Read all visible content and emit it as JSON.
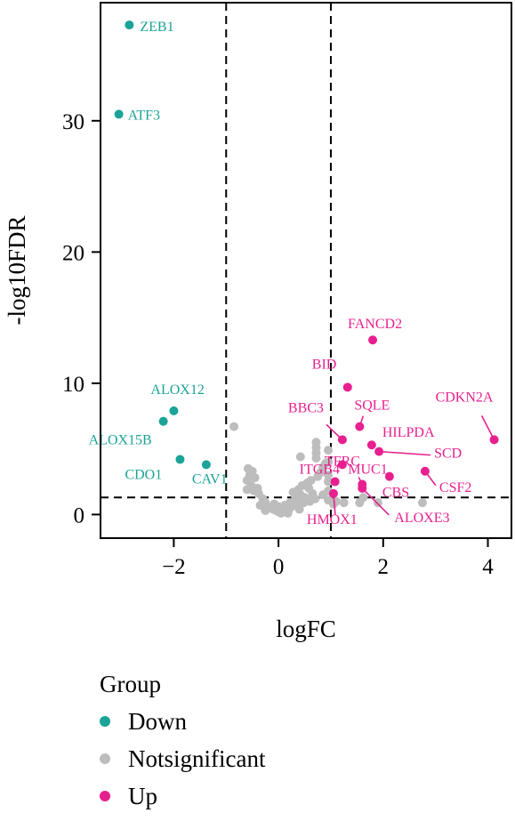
{
  "chart_data": {
    "type": "scatter",
    "xlabel": "logFC",
    "ylabel": "-log10FDR",
    "xlim": [
      -3.4,
      4.45
    ],
    "ylim": [
      -1.8,
      39
    ],
    "xticks": [
      -2,
      0,
      2,
      4
    ],
    "yticks": [
      0,
      10,
      20,
      30
    ],
    "x_tick_labels": [
      "−2",
      "0",
      "2",
      "4"
    ],
    "y_tick_labels": [
      "0",
      "10",
      "20",
      "30"
    ],
    "threshold_lines": {
      "x": [
        -1,
        1
      ],
      "y": [
        1.3
      ]
    },
    "colors": {
      "Down": "#1aa396",
      "Notsignificant": "#bdbdbd",
      "Up": "#e8208f"
    },
    "legend": {
      "title": "Group",
      "placement": "bottom-left",
      "items": [
        {
          "group": "Down",
          "label": "Down"
        },
        {
          "group": "Notsignificant",
          "label": "Notsignificant"
        },
        {
          "group": "Up",
          "label": "Up"
        }
      ]
    },
    "series": [
      {
        "name": "Down",
        "points": [
          {
            "x": -2.85,
            "y": 37.3,
            "label": "ZEB1"
          },
          {
            "x": -3.05,
            "y": 30.5,
            "label": "ATF3"
          },
          {
            "x": -2.0,
            "y": 7.9,
            "label": "ALOX12"
          },
          {
            "x": -2.2,
            "y": 7.1,
            "label": "ALOX15B"
          },
          {
            "x": -1.88,
            "y": 4.2,
            "label": "CDO1"
          },
          {
            "x": -1.38,
            "y": 3.8,
            "label": "CAV1"
          }
        ]
      },
      {
        "name": "Notsignificant",
        "points": [
          {
            "x": -0.85,
            "y": 6.7
          },
          {
            "x": -0.58,
            "y": 3.5
          },
          {
            "x": -0.5,
            "y": 3.3
          },
          {
            "x": -0.55,
            "y": 3.0
          },
          {
            "x": -0.6,
            "y": 2.6
          },
          {
            "x": -0.45,
            "y": 2.8
          },
          {
            "x": -0.52,
            "y": 2.2
          },
          {
            "x": -0.4,
            "y": 2.0
          },
          {
            "x": -0.47,
            "y": 1.8
          },
          {
            "x": -0.38,
            "y": 1.6
          },
          {
            "x": -0.6,
            "y": 1.9
          },
          {
            "x": -0.3,
            "y": 1.2
          },
          {
            "x": -0.35,
            "y": 0.7
          },
          {
            "x": -0.25,
            "y": 0.9
          },
          {
            "x": -0.2,
            "y": 0.5
          },
          {
            "x": -0.15,
            "y": 0.6
          },
          {
            "x": -0.1,
            "y": 0.4
          },
          {
            "x": -0.05,
            "y": 0.3
          },
          {
            "x": 0.0,
            "y": 0.2
          },
          {
            "x": 0.05,
            "y": 0.1
          },
          {
            "x": 0.1,
            "y": 0.3
          },
          {
            "x": 0.15,
            "y": 0.2
          },
          {
            "x": 0.2,
            "y": 0.4
          },
          {
            "x": 0.25,
            "y": 0.6
          },
          {
            "x": 0.3,
            "y": 0.8
          },
          {
            "x": 0.35,
            "y": 1.0
          },
          {
            "x": 0.32,
            "y": 1.4
          },
          {
            "x": 0.28,
            "y": 1.7
          },
          {
            "x": 0.38,
            "y": 1.9
          },
          {
            "x": 0.45,
            "y": 2.2
          },
          {
            "x": 0.5,
            "y": 1.3
          },
          {
            "x": 0.55,
            "y": 2.4
          },
          {
            "x": 0.62,
            "y": 2.6
          },
          {
            "x": 0.58,
            "y": 2.0
          },
          {
            "x": 0.42,
            "y": 1.5
          },
          {
            "x": 0.48,
            "y": 0.9
          },
          {
            "x": 0.65,
            "y": 1.6
          },
          {
            "x": 0.7,
            "y": 1.2
          },
          {
            "x": 0.75,
            "y": 2.9
          },
          {
            "x": 0.8,
            "y": 3.2
          },
          {
            "x": 0.85,
            "y": 3.6
          },
          {
            "x": 0.9,
            "y": 3.9
          },
          {
            "x": 0.72,
            "y": 5.5
          },
          {
            "x": 0.72,
            "y": 5.1
          },
          {
            "x": 0.72,
            "y": 4.7
          },
          {
            "x": 0.72,
            "y": 4.3
          },
          {
            "x": 0.42,
            "y": 4.4
          },
          {
            "x": 0.95,
            "y": 4.9
          },
          {
            "x": 0.95,
            "y": 4.0
          },
          {
            "x": 0.95,
            "y": 3.0
          },
          {
            "x": 0.95,
            "y": 2.5
          },
          {
            "x": 0.95,
            "y": 1.8
          },
          {
            "x": 0.95,
            "y": 1.1
          },
          {
            "x": 0.85,
            "y": 1.5
          },
          {
            "x": 0.6,
            "y": 1.0
          },
          {
            "x": 0.0,
            "y": 0.6
          },
          {
            "x": -0.08,
            "y": 0.8
          },
          {
            "x": 0.12,
            "y": 0.7
          },
          {
            "x": 0.22,
            "y": 0.9
          },
          {
            "x": 0.4,
            "y": 0.4
          },
          {
            "x": 0.18,
            "y": 0.1
          },
          {
            "x": -0.25,
            "y": 0.3
          },
          {
            "x": 1.05,
            "y": 0.8
          },
          {
            "x": 1.25,
            "y": 0.9
          },
          {
            "x": 1.55,
            "y": 0.9
          },
          {
            "x": 1.9,
            "y": 0.9
          },
          {
            "x": 2.75,
            "y": 0.9
          },
          {
            "x": 1.62,
            "y": 1.3
          },
          {
            "x": 1.1,
            "y": 1.0
          }
        ]
      },
      {
        "name": "Up",
        "points": [
          {
            "x": 1.8,
            "y": 13.3,
            "label": "FANCD2"
          },
          {
            "x": 1.32,
            "y": 9.7,
            "label": "BID"
          },
          {
            "x": 4.12,
            "y": 5.7,
            "label": "CDKN2A"
          },
          {
            "x": 1.55,
            "y": 6.7,
            "label": "SQLE"
          },
          {
            "x": 1.22,
            "y": 5.7,
            "label": "BBC3"
          },
          {
            "x": 1.78,
            "y": 5.3,
            "label": "HILPDA"
          },
          {
            "x": 1.92,
            "y": 4.8,
            "label": "SCD"
          },
          {
            "x": 1.22,
            "y": 3.8,
            "label": "TFRC"
          },
          {
            "x": 2.8,
            "y": 3.3,
            "label": "CSF2"
          },
          {
            "x": 2.12,
            "y": 2.9,
            "label": "CBS"
          },
          {
            "x": 1.08,
            "y": 2.5,
            "label": "ITGB4"
          },
          {
            "x": 1.6,
            "y": 2.3,
            "label": "MUC1"
          },
          {
            "x": 1.05,
            "y": 1.6,
            "label": "HMOX1"
          },
          {
            "x": 1.6,
            "y": 2.0,
            "label": "ALOXE3"
          }
        ]
      }
    ]
  }
}
